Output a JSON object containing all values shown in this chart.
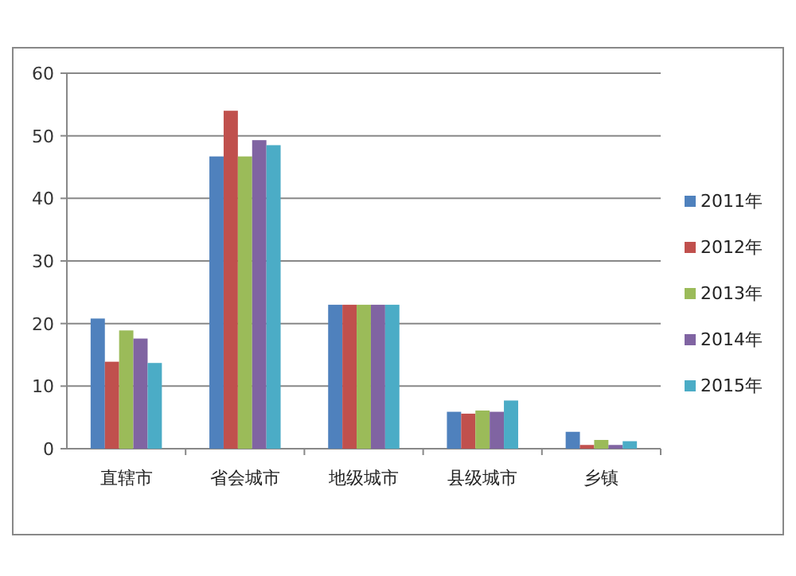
{
  "chart_data": {
    "type": "bar",
    "categories": [
      "直辖市",
      "省会城市",
      "地级城市",
      "县级城市",
      "乡镇"
    ],
    "series": [
      {
        "name": "2011年",
        "color": "#4f81bd",
        "values": [
          20.8,
          46.7,
          23,
          5.9,
          2.7
        ]
      },
      {
        "name": "2012年",
        "color": "#c0504d",
        "values": [
          13.9,
          54,
          23,
          5.6,
          0.6
        ]
      },
      {
        "name": "2013年",
        "color": "#9bbb59",
        "values": [
          18.9,
          46.7,
          23,
          6.1,
          1.4
        ]
      },
      {
        "name": "2014年",
        "color": "#8064a2",
        "values": [
          17.6,
          49.3,
          23,
          5.9,
          0.6
        ]
      },
      {
        "name": "2015年",
        "color": "#4bacc6",
        "values": [
          13.7,
          48.5,
          23,
          7.7,
          1.2
        ]
      }
    ],
    "ylim": [
      0,
      60
    ],
    "yticks": [
      0,
      10,
      20,
      30,
      40,
      50,
      60
    ],
    "grid": "y",
    "legend": "right"
  }
}
